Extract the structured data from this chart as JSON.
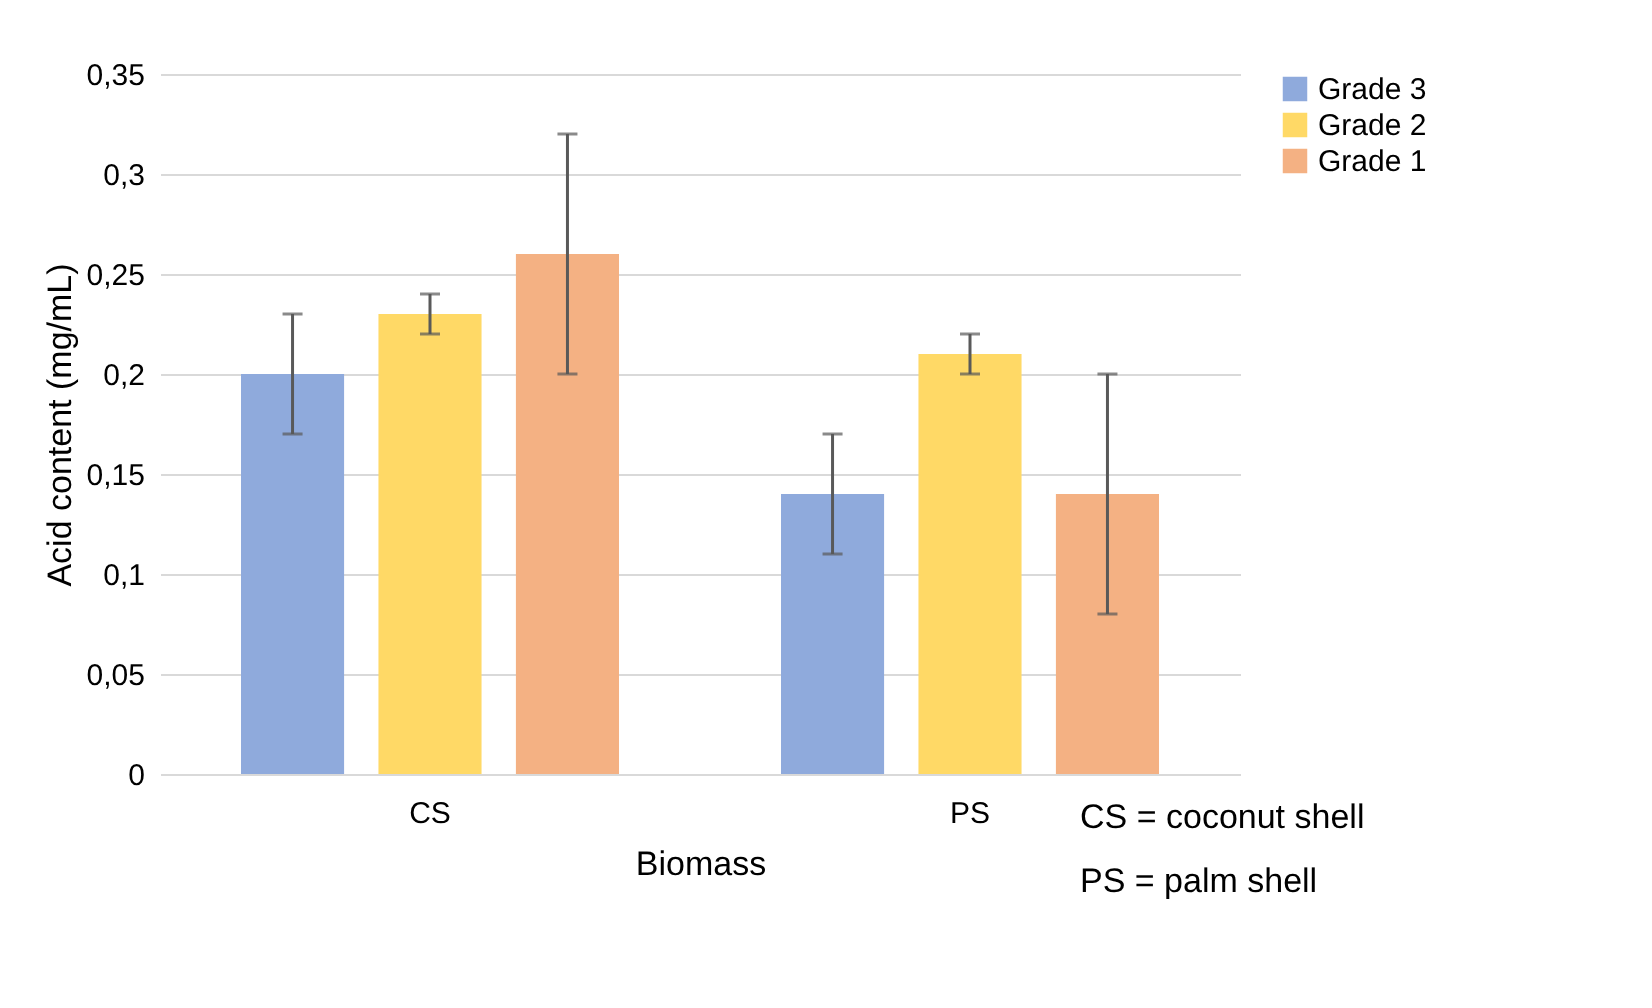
{
  "chart_data": {
    "type": "bar",
    "xlabel": "Biomass",
    "ylabel": "Acid content (mg/mL)",
    "categories": [
      "CS",
      "PS"
    ],
    "series": [
      {
        "name": "Grade 3",
        "color": "#8faadc",
        "values": [
          0.2,
          0.14
        ],
        "errors": [
          0.03,
          0.03
        ]
      },
      {
        "name": "Grade 2",
        "color": "#ffd966",
        "values": [
          0.23,
          0.21
        ],
        "errors": [
          0.01,
          0.01
        ]
      },
      {
        "name": "Grade 1",
        "color": "#f4b183",
        "values": [
          0.26,
          0.14
        ],
        "errors": [
          0.06,
          0.06
        ]
      }
    ],
    "ylim": [
      0,
      0.35
    ],
    "yticks": [
      {
        "value": 0,
        "label": "0"
      },
      {
        "value": 0.05,
        "label": "0,05"
      },
      {
        "value": 0.1,
        "label": "0,1"
      },
      {
        "value": 0.15,
        "label": "0,15"
      },
      {
        "value": 0.2,
        "label": "0,2"
      },
      {
        "value": 0.25,
        "label": "0,25"
      },
      {
        "value": 0.3,
        "label": "0,3"
      },
      {
        "value": 0.35,
        "label": "0,35"
      }
    ],
    "grid": "y",
    "legend": "right",
    "annotations": [
      "CS = coconut shell",
      "PS = palm shell"
    ]
  }
}
